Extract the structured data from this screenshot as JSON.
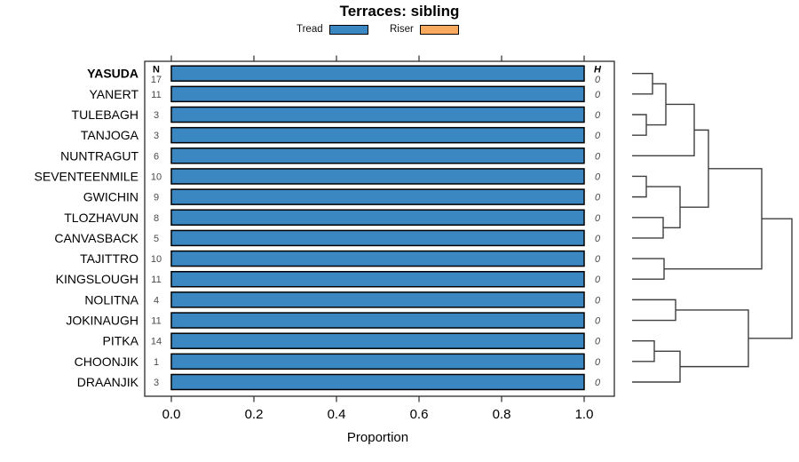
{
  "title": "Terraces: sibling",
  "legend": {
    "items": [
      {
        "label": "Tread",
        "color": "#3A87C2"
      },
      {
        "label": "Riser",
        "color": "#FAAA5F"
      }
    ]
  },
  "chart_data": {
    "type": "bar",
    "orientation": "horizontal",
    "stacked": true,
    "title": "Terraces: sibling",
    "xlabel": "Proportion",
    "xlim": [
      0,
      1.05
    ],
    "x_ticks": [
      "0.0",
      "0.2",
      "0.4",
      "0.6",
      "0.8",
      "1.0"
    ],
    "x_tick_values": [
      0,
      0.2,
      0.4,
      0.6,
      0.8,
      1.0
    ],
    "grid": false,
    "legend_position": "top",
    "categories": [
      "YASUDA",
      "YANERT",
      "TULEBAGH",
      "TANJOGA",
      "NUNTRAGUT",
      "SEVENTEENMILE",
      "GWICHIN",
      "TLOZHAVUN",
      "CANVASBACK",
      "TAJITTRO",
      "KINGSLOUGH",
      "NOLITNA",
      "JOKINAUGH",
      "PITKA",
      "CHOONJIK",
      "DRAANJIK"
    ],
    "bold_categories": [
      "YASUDA"
    ],
    "series": [
      {
        "name": "Tread",
        "color": "#3A87C2",
        "values": [
          1,
          1,
          1,
          1,
          1,
          1,
          1,
          1,
          1,
          1,
          1,
          1,
          1,
          1,
          1,
          1
        ]
      },
      {
        "name": "Riser",
        "color": "#FAAA5F",
        "values": [
          0,
          0,
          0,
          0,
          0,
          0,
          0,
          0,
          0,
          0,
          0,
          0,
          0,
          0,
          0,
          0
        ]
      }
    ],
    "n_column": {
      "header": "N",
      "values": [
        17,
        11,
        3,
        3,
        6,
        10,
        9,
        8,
        5,
        10,
        11,
        4,
        11,
        14,
        1,
        3
      ]
    },
    "h_column": {
      "header": "H",
      "values": [
        0,
        0,
        0,
        0,
        0,
        0,
        0,
        0,
        0,
        0,
        0,
        0,
        0,
        0,
        0,
        0
      ]
    },
    "dendrogram": {
      "leaves": [
        "YASUDA",
        "YANERT",
        "TULEBAGH",
        "TANJOGA",
        "NUNTRAGUT",
        "SEVENTEENMILE",
        "GWICHIN",
        "TLOZHAVUN",
        "CANVASBACK",
        "TAJITTRO",
        "KINGSLOUGH",
        "NOLITNA",
        "JOKINAUGH",
        "PITKA",
        "CHOONJIK",
        "DRAANJIK"
      ],
      "merges": [
        {
          "id": "n1",
          "children": [
            "leaf0",
            "leaf1"
          ],
          "x": 735
        },
        {
          "id": "n2",
          "children": [
            "leaf2",
            "leaf3"
          ],
          "x": 728
        },
        {
          "id": "n3",
          "children": [
            "n1",
            "n2"
          ],
          "x": 750
        },
        {
          "id": "n4",
          "children": [
            "n3",
            "leaf4"
          ],
          "x": 782
        },
        {
          "id": "n5",
          "children": [
            "leaf5",
            "leaf6"
          ],
          "x": 728
        },
        {
          "id": "n6",
          "children": [
            "leaf7",
            "leaf8"
          ],
          "x": 747
        },
        {
          "id": "n7",
          "children": [
            "n5",
            "n6"
          ],
          "x": 766
        },
        {
          "id": "n8",
          "children": [
            "n4",
            "n7"
          ],
          "x": 798
        },
        {
          "id": "n9",
          "children": [
            "leaf9",
            "leaf10"
          ],
          "x": 748
        },
        {
          "id": "n10",
          "children": [
            "n8",
            "n9"
          ],
          "x": 858
        },
        {
          "id": "n11",
          "children": [
            "leaf11",
            "leaf12"
          ],
          "x": 761
        },
        {
          "id": "n12",
          "children": [
            "leaf13",
            "leaf14"
          ],
          "x": 737
        },
        {
          "id": "n13",
          "children": [
            "n12",
            "leaf15"
          ],
          "x": 766
        },
        {
          "id": "n14",
          "children": [
            "n11",
            "n13"
          ],
          "x": 843
        },
        {
          "id": "n15",
          "children": [
            "n10",
            "n14"
          ],
          "x": 892
        }
      ]
    }
  }
}
